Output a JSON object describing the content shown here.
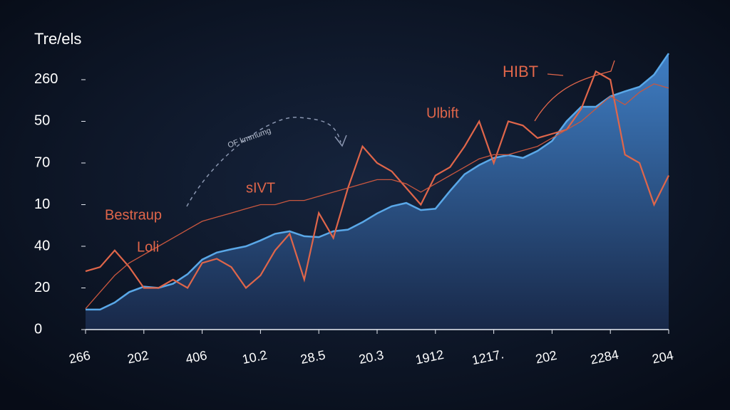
{
  "chart_data": {
    "type": "line",
    "title": "Tre/els",
    "x": [
      0,
      1,
      2,
      3,
      4,
      5,
      6,
      7,
      8,
      9,
      10,
      11,
      12,
      13,
      14,
      15,
      16,
      17,
      18,
      19,
      20,
      21,
      22,
      23,
      24,
      25,
      26,
      27,
      28,
      29,
      30,
      31,
      32,
      33,
      34,
      35,
      36,
      37,
      38,
      39,
      40
    ],
    "xlim": [
      0,
      40
    ],
    "xticks": [
      {
        "value": 0,
        "label": "266"
      },
      {
        "value": 4,
        "label": "202"
      },
      {
        "value": 8,
        "label": "406"
      },
      {
        "value": 12,
        "label": "10.2"
      },
      {
        "value": 16,
        "label": "28.5"
      },
      {
        "value": 20,
        "label": "20.3"
      },
      {
        "value": 24,
        "label": "1912"
      },
      {
        "value": 28,
        "label": "1217."
      },
      {
        "value": 32,
        "label": "202"
      },
      {
        "value": 36,
        "label": "2284"
      },
      {
        "value": 40,
        "label": "204"
      }
    ],
    "ylim": [
      0,
      6.7
    ],
    "yticks": [
      0,
      {
        "value": 1,
        "label": "20"
      },
      {
        "value": 2,
        "label": "40"
      },
      {
        "value": 3,
        "label": "10"
      },
      {
        "value": 4,
        "label": "70"
      },
      {
        "value": 5,
        "label": "50"
      },
      {
        "value": 6,
        "label": "260"
      }
    ],
    "series": [
      {
        "type": "area",
        "color": "#5aa8e8",
        "values": [
          0.48,
          0.48,
          0.65,
          0.9,
          1.03,
          1.0,
          1.1,
          1.33,
          1.68,
          1.85,
          1.93,
          2.0,
          2.14,
          2.3,
          2.36,
          2.24,
          2.22,
          2.36,
          2.4,
          2.58,
          2.79,
          2.96,
          3.04,
          2.87,
          2.9,
          3.33,
          3.73,
          3.95,
          4.12,
          4.19,
          4.12,
          4.29,
          4.53,
          5.0,
          5.35,
          5.35,
          5.6,
          5.72,
          5.83,
          6.12,
          6.63
        ]
      },
      {
        "type": "line",
        "color": "#e0664a",
        "values": [
          1.4,
          1.5,
          1.9,
          1.5,
          1.0,
          1.0,
          1.2,
          1.0,
          1.6,
          1.7,
          1.5,
          1.0,
          1.3,
          1.9,
          2.3,
          1.2,
          2.8,
          2.2,
          3.4,
          4.4,
          4.0,
          3.8,
          3.4,
          3.0,
          3.7,
          3.9,
          4.4,
          5.0,
          4.0,
          5.0,
          4.9,
          4.6,
          4.7,
          4.8,
          5.3,
          6.2,
          6.0,
          4.2,
          4.0,
          3.0,
          3.7
        ]
      },
      {
        "type": "line",
        "color": "#c9573f",
        "values": [
          0.5,
          0.9,
          1.3,
          1.6,
          1.8,
          2.0,
          2.2,
          2.4,
          2.6,
          2.7,
          2.8,
          2.9,
          3.0,
          3.0,
          3.1,
          3.1,
          3.2,
          3.3,
          3.4,
          3.5,
          3.6,
          3.6,
          3.5,
          3.3,
          3.5,
          3.7,
          3.9,
          4.1,
          4.2,
          4.2,
          4.3,
          4.4,
          4.6,
          4.8,
          5.0,
          5.3,
          5.6,
          5.4,
          5.7,
          5.9,
          5.8
        ]
      }
    ],
    "annotations": [
      "HIBT",
      "Ulbift",
      "sIVT",
      "Bestraup",
      "Loli",
      "OF kmmumg"
    ]
  }
}
